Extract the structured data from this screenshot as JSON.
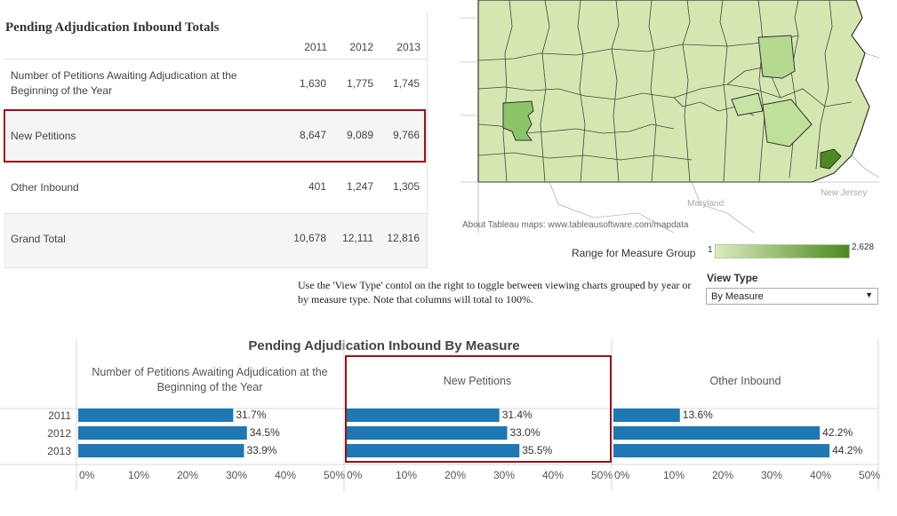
{
  "table": {
    "title": "Pending Adjudication Inbound Totals",
    "years": [
      "2011",
      "2012",
      "2013"
    ],
    "rows": [
      {
        "label": "Number of Petitions Awaiting Adjudication at the Beginning of the Year",
        "values": [
          "1,630",
          "1,775",
          "1,745"
        ]
      },
      {
        "label": "New Petitions",
        "values": [
          "8,647",
          "9,089",
          "9,766"
        ]
      },
      {
        "label": "Other Inbound",
        "values": [
          "401",
          "1,247",
          "1,305"
        ]
      },
      {
        "label": "Grand Total",
        "values": [
          "10,678",
          "12,111",
          "12,816"
        ]
      }
    ]
  },
  "map": {
    "credit": "About Tableau maps: www.tableausoftware.com/mapdata",
    "place_labels": [
      "Maryland",
      "New Jersey"
    ],
    "legend_label": "Range for  Measure Group",
    "legend_min": "1",
    "legend_max": "2,628",
    "colors": {
      "low": "#dcebc1",
      "high": "#4b8a1e"
    }
  },
  "note": "Use the 'View Type' contol on the right to toggle between viewing charts grouped by year or by measure type.  Note that columns will total to 100%.",
  "view_type": {
    "label": "View Type",
    "selected": "By Measure"
  },
  "chart_data": {
    "type": "bar",
    "title": "Pending Adjudication Inbound By Measure",
    "categories": [
      "2011",
      "2012",
      "2013"
    ],
    "series": [
      {
        "name": "Number of Petitions Awaiting Adjudication at the Beginning of the Year",
        "values": [
          31.7,
          34.5,
          33.9
        ],
        "labels": [
          "31.7%",
          "34.5%",
          "33.9%"
        ]
      },
      {
        "name": "New Petitions",
        "values": [
          31.4,
          33.0,
          35.5
        ],
        "labels": [
          "31.4%",
          "33.0%",
          "35.5%"
        ]
      },
      {
        "name": "Other Inbound",
        "values": [
          13.6,
          42.2,
          44.2
        ],
        "labels": [
          "13.6%",
          "42.2%",
          "44.2%"
        ]
      }
    ],
    "xlim": [
      0,
      50
    ],
    "ticks": [
      "0%",
      "10%",
      "20%",
      "30%",
      "40%",
      "50%"
    ],
    "tick_values": [
      0,
      10,
      20,
      30,
      40,
      50
    ],
    "orientation": "horizontal",
    "highlighted_series": "New Petitions",
    "bar_color": "#1f77b4",
    "highlight_color": "#a00f14"
  }
}
